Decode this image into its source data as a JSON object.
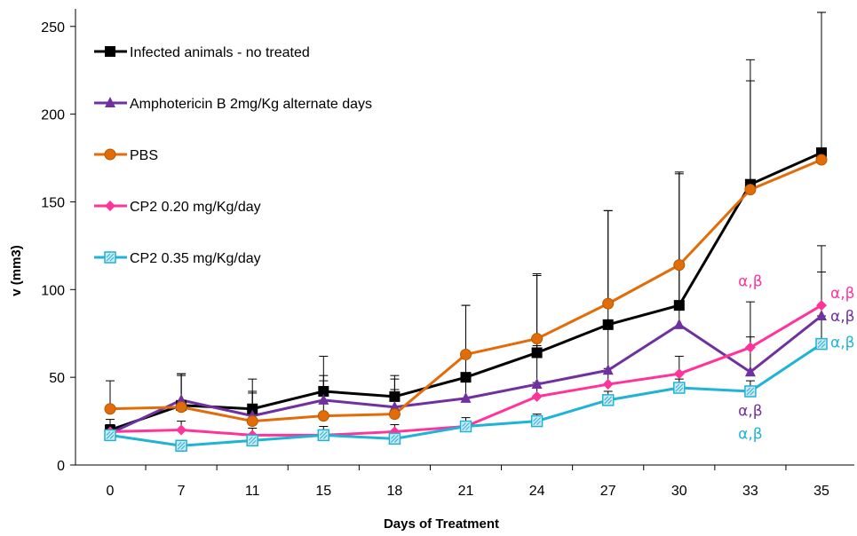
{
  "chart_data": {
    "type": "line",
    "title": "",
    "xlabel": "Days of Treatment",
    "ylabel": "v (mm3)",
    "categories": [
      "0",
      "7",
      "11",
      "15",
      "18",
      "21",
      "24",
      "27",
      "30",
      "33",
      "35"
    ],
    "ylim": [
      0,
      260
    ],
    "yticks": [
      "0",
      "50",
      "100",
      "150",
      "200",
      "250"
    ],
    "ytick_values": [
      0,
      50,
      100,
      150,
      200,
      250
    ],
    "grid": false,
    "legend_placement": "top-left",
    "series": [
      {
        "name": "Infected animals - no treated",
        "color": "#000000",
        "marker": "square",
        "values": [
          20,
          34,
          32,
          42,
          39,
          50,
          64,
          80,
          91,
          160,
          178
        ],
        "errors": [
          6,
          18,
          17,
          20,
          12,
          41,
          45,
          65,
          76,
          71,
          80
        ]
      },
      {
        "name": "Amphotericin B 2mg/Kg alternate days",
        "color": "#7030a0",
        "marker": "triangle",
        "values": [
          18,
          37,
          28,
          37,
          33,
          38,
          46,
          54,
          80,
          53,
          85
        ],
        "errors": [
          5,
          14,
          14,
          14,
          10,
          14,
          22,
          25,
          35,
          20,
          25
        ]
      },
      {
        "name": "PBS",
        "color": "#e36c0a",
        "marker": "circle",
        "values": [
          32,
          33,
          25,
          28,
          29,
          63,
          72,
          92,
          114,
          157,
          174
        ],
        "errors": [
          16,
          19,
          16,
          20,
          20,
          28,
          36,
          53,
          52,
          62,
          84
        ]
      },
      {
        "name": "CP2 0.20 mg/Kg/day",
        "color": "#ff3399",
        "marker": "diamond",
        "values": [
          19,
          20,
          17,
          17,
          19,
          22,
          39,
          46,
          52,
          67,
          91
        ],
        "errors": [
          4,
          5,
          4,
          5,
          4,
          5,
          8,
          9,
          10,
          26,
          34
        ]
      },
      {
        "name": "CP2 0.35 mg/Kg/day",
        "color": "#1fb3d6",
        "marker": "square-hatched",
        "values": [
          17,
          11,
          14,
          17,
          15,
          22,
          25,
          37,
          44,
          42,
          69
        ],
        "errors": [
          3,
          3,
          3,
          3,
          3,
          3,
          4,
          5,
          5,
          6,
          16
        ]
      }
    ],
    "annotations": [
      {
        "text": "α,β",
        "color": "#ff3399",
        "x": "33",
        "y": 102
      },
      {
        "text": "α,β",
        "color": "#ff3399",
        "x": "35",
        "y": 95
      },
      {
        "text": "α,β",
        "color": "#7030a0",
        "x": "35",
        "y": 82
      },
      {
        "text": "α,β",
        "color": "#1fb3d6",
        "x": "35",
        "y": 67
      },
      {
        "text": "α,β",
        "color": "#7030a0",
        "x": "33",
        "y": 28
      },
      {
        "text": "α,β",
        "color": "#1fb3d6",
        "x": "33",
        "y": 15
      }
    ]
  }
}
